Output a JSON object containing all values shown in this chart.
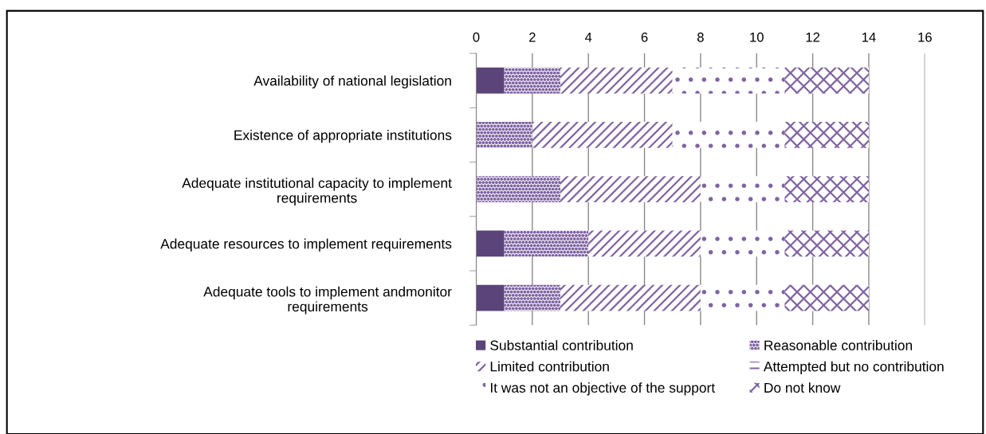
{
  "chart_data": {
    "type": "bar",
    "orientation": "horizontal",
    "stacked": true,
    "categories": [
      "Availability of national legislation",
      "Existence of appropriate institutions",
      "Adequate institutional capacity to implement requirements",
      "Adequate resources to implement requirements",
      "Adequate tools to implement andmonitor requirements"
    ],
    "series": [
      {
        "name": "Substantial contribution",
        "color": "#5b4479",
        "values": [
          1,
          0,
          0,
          1,
          1
        ]
      },
      {
        "name": "Reasonable contribution",
        "color": "#8064a2",
        "values": [
          2,
          2,
          3,
          3,
          2
        ]
      },
      {
        "name": "Limited contribution",
        "color": "#8064a2",
        "values": [
          4,
          5,
          5,
          4,
          5
        ]
      },
      {
        "name": "Attempted but no contribution",
        "color": "#8064a2",
        "values": [
          0,
          0,
          0,
          0,
          0
        ]
      },
      {
        "name": "It was not an objective of the support",
        "color": "#8064a2",
        "values": [
          4,
          4,
          3,
          3,
          3
        ]
      },
      {
        "name": "Do not know",
        "color": "#8064a2",
        "values": [
          3,
          3,
          3,
          3,
          3
        ]
      }
    ],
    "xlim": [
      0,
      16
    ],
    "xticks": [
      0,
      2,
      4,
      6,
      8,
      10,
      12,
      14,
      16
    ],
    "grid": "x",
    "legend": "bottom"
  }
}
